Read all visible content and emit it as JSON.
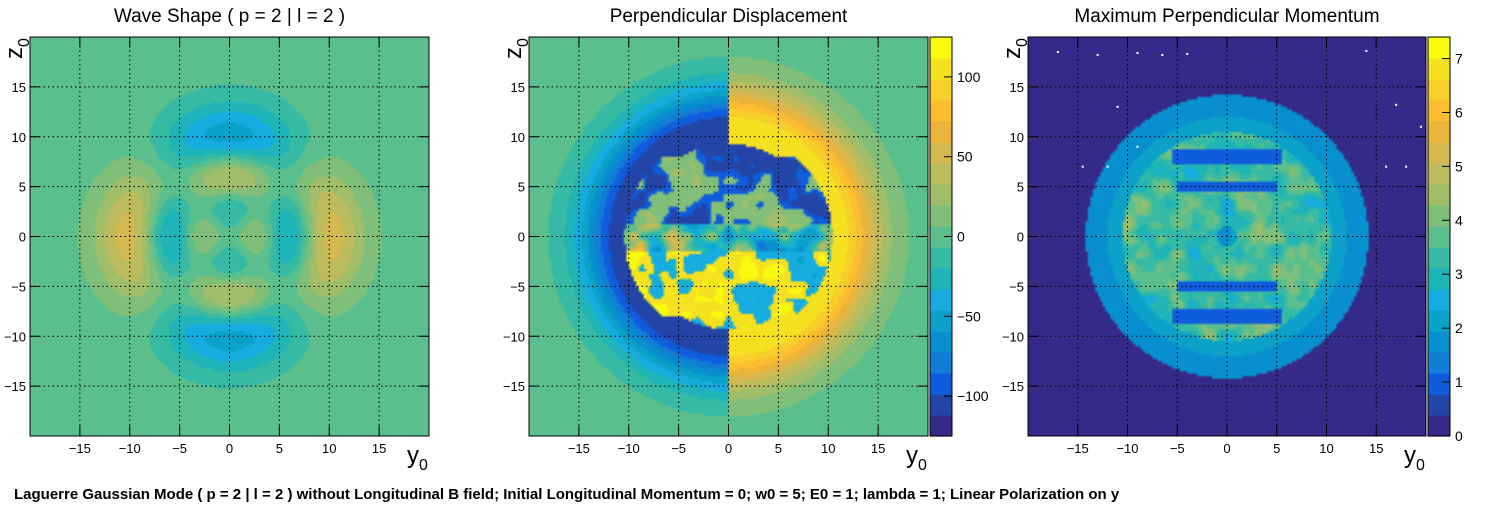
{
  "caption": "Laguerre Gaussian Mode ( p = 2 | l = 2 ) without Longitudinal B field; Initial Longitudinal Momentum = 0; w0 = 5; E0 = 1; lambda = 1; Linear Polarization on y",
  "colors": {
    "palette": [
      "#352a87",
      "#2445a8",
      "#0f5cdd",
      "#117dd5",
      "#078fd0",
      "#0ba1c8",
      "#16ace0",
      "#1fb4b8",
      "#36baa4",
      "#5bbf8d",
      "#7fbf7a",
      "#a0bd6a",
      "#bcbb5d",
      "#d3b94f",
      "#eab43c",
      "#fdbd30",
      "#f7ce2a",
      "#f5e120",
      "#f9fb0e"
    ],
    "frame": "#000000",
    "grid": "#000000"
  },
  "chart_data": [
    {
      "type": "heatmap",
      "title": "Wave Shape ( p = 2 | l = 2 )",
      "xlabel": "y",
      "xlabel_sub": "0",
      "ylabel": "z",
      "ylabel_sub": "0",
      "xlim": [
        -20,
        20
      ],
      "ylim": [
        -20,
        20
      ],
      "xticks": [
        -15,
        -10,
        -5,
        0,
        5,
        10,
        15
      ],
      "yticks": [
        -15,
        -10,
        -5,
        0,
        5,
        10,
        15
      ],
      "xtick_labels": [
        "−15",
        "−10",
        "−5",
        "0",
        "5",
        "10",
        "15"
      ],
      "ytick_labels": [
        "−15",
        "−10",
        "−5",
        "0",
        "5",
        "10",
        "15"
      ],
      "grid": true,
      "colorbar": false,
      "field": "laguerre_gauss_wave_shape",
      "value_range": [
        -1,
        1
      ]
    },
    {
      "type": "heatmap",
      "title": "Perpendicular Displacement",
      "xlabel": "y",
      "xlabel_sub": "0",
      "ylabel": "z",
      "ylabel_sub": "0",
      "xlim": [
        -20,
        20
      ],
      "ylim": [
        -20,
        20
      ],
      "xticks": [
        -15,
        -10,
        -5,
        0,
        5,
        10,
        15
      ],
      "yticks": [
        -15,
        -10,
        -5,
        0,
        5,
        10,
        15
      ],
      "xtick_labels": [
        "−15",
        "−10",
        "−5",
        "0",
        "5",
        "10",
        "15"
      ],
      "ytick_labels": [
        "−15",
        "−10",
        "−5",
        "0",
        "5",
        "10",
        "15"
      ],
      "grid": true,
      "colorbar": true,
      "zlim": [
        -125,
        125
      ],
      "zticks": [
        -100,
        -50,
        0,
        50,
        100
      ],
      "ztick_labels": [
        "−100",
        "−50",
        "0",
        "50",
        "100"
      ],
      "field": "perpendicular_displacement"
    },
    {
      "type": "heatmap",
      "title": "Maximum Perpendicular Momentum",
      "xlabel": "y",
      "xlabel_sub": "0",
      "ylabel": "z",
      "ylabel_sub": "0",
      "xlim": [
        -20,
        20
      ],
      "ylim": [
        -20,
        20
      ],
      "xticks": [
        -15,
        -10,
        -5,
        0,
        5,
        10,
        15
      ],
      "yticks": [
        -15,
        -10,
        -5,
        0,
        5,
        10,
        15
      ],
      "xtick_labels": [
        "−15",
        "−10",
        "−5",
        "0",
        "5",
        "10",
        "15"
      ],
      "ytick_labels": [
        "−15",
        "−10",
        "−5",
        "0",
        "5",
        "10",
        "15"
      ],
      "grid": true,
      "colorbar": true,
      "zlim": [
        0,
        7.4
      ],
      "zticks": [
        0,
        1,
        2,
        3,
        4,
        5,
        6,
        7
      ],
      "ztick_labels": [
        "0",
        "1",
        "2",
        "3",
        "4",
        "5",
        "6",
        "7"
      ],
      "field": "maximum_perpendicular_momentum"
    }
  ]
}
